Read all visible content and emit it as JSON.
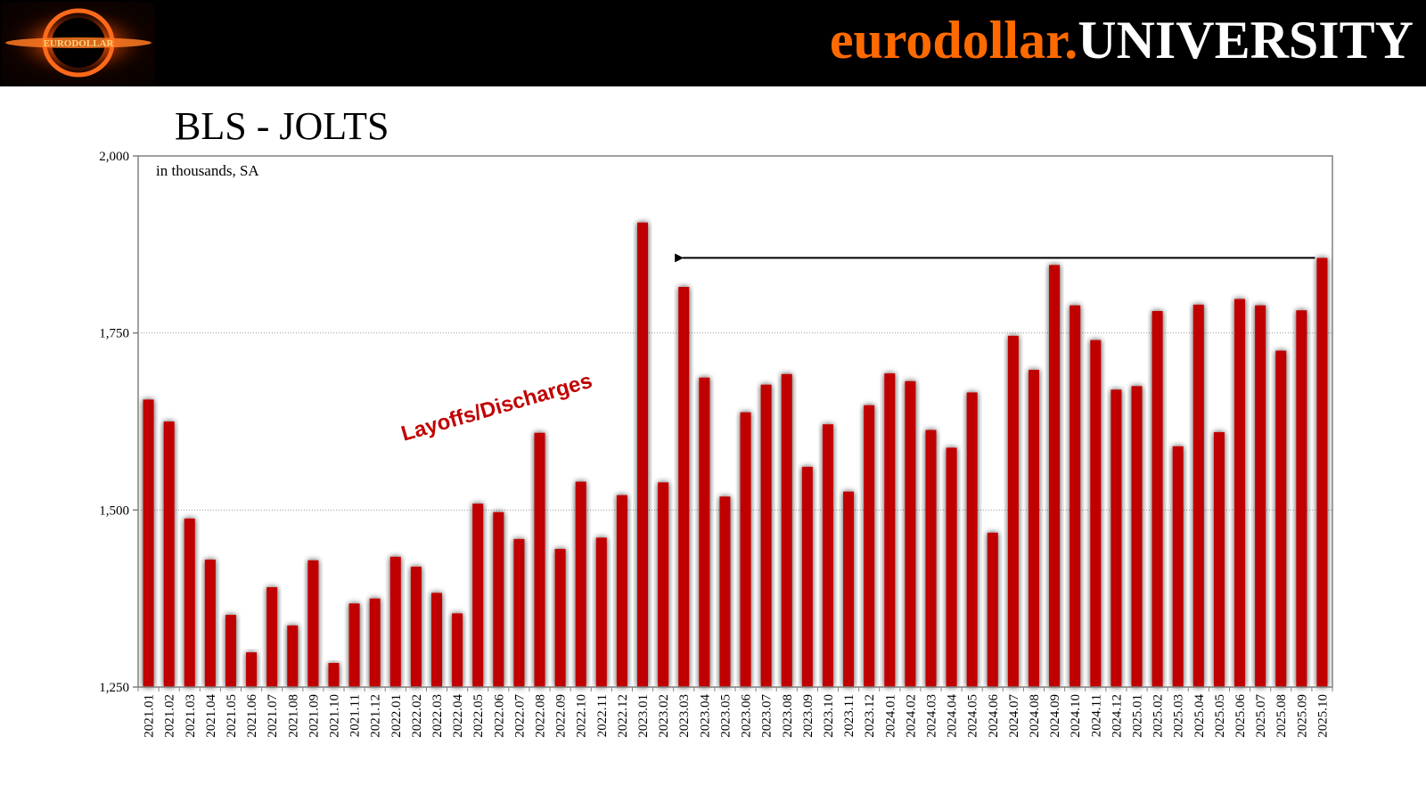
{
  "header": {
    "brand_part1": "eurodollar.",
    "brand_part2": "UNIVERSITY",
    "logo_icon": "black-hole-logo-icon",
    "logo_text": "EURODOLLAR"
  },
  "colors": {
    "header_bg": "#000000",
    "brand_orange": "#ff6a00",
    "brand_white": "#ffffff",
    "bar": "#c00000",
    "label": "#c00000"
  },
  "chart_data": {
    "type": "bar",
    "title": "BLS - JOLTS",
    "note": "in thousands, SA",
    "series_label": "Layoffs/Discharges",
    "ylim": [
      1250,
      2000
    ],
    "yticks": [
      1250,
      1500,
      1750,
      2000
    ],
    "ytick_labels": [
      "1,250",
      "1,500",
      "1,750",
      "2,000"
    ],
    "grid": "horizontal dotted",
    "categories": [
      "2021.01",
      "2021.02",
      "2021.03",
      "2021.04",
      "2021.05",
      "2021.06",
      "2021.07",
      "2021.08",
      "2021.09",
      "2021.10",
      "2021.11",
      "2021.12",
      "2022.01",
      "2022.02",
      "2022.03",
      "2022.04",
      "2022.05",
      "2022.06",
      "2022.07",
      "2022.08",
      "2022.09",
      "2022.10",
      "2022.11",
      "2022.12",
      "2023.01",
      "2023.02",
      "2023.03",
      "2023.04",
      "2023.05",
      "2023.06",
      "2023.07",
      "2023.08",
      "2023.09",
      "2023.10",
      "2023.11",
      "2023.12",
      "2024.01",
      "2024.02",
      "2024.03",
      "2024.04",
      "2024.05",
      "2024.06",
      "2024.07",
      "2024.08",
      "2024.09",
      "2024.10",
      "2024.11",
      "2024.12",
      "2025.01",
      "2025.02",
      "2025.03",
      "2025.04",
      "2025.05",
      "2025.06",
      "2025.07",
      "2025.08",
      "2025.09",
      "2025.10"
    ],
    "values": [
      1656,
      1625,
      1488,
      1430,
      1352,
      1299,
      1391,
      1337,
      1429,
      1284,
      1368,
      1375,
      1434,
      1420,
      1383,
      1354,
      1509,
      1497,
      1459,
      1609,
      1445,
      1540,
      1461,
      1521,
      1906,
      1539,
      1815,
      1687,
      1519,
      1638,
      1677,
      1692,
      1561,
      1621,
      1526,
      1648,
      1693,
      1682,
      1613,
      1588,
      1666,
      1468,
      1746,
      1698,
      1846,
      1789,
      1740,
      1670,
      1675,
      1781,
      1590,
      1790,
      1610,
      1798,
      1789,
      1725,
      1782,
      1856
    ],
    "annotation": {
      "type": "arrow",
      "from_category": "2025.10",
      "to_category": "2023.02",
      "y_value": 1856
    }
  }
}
